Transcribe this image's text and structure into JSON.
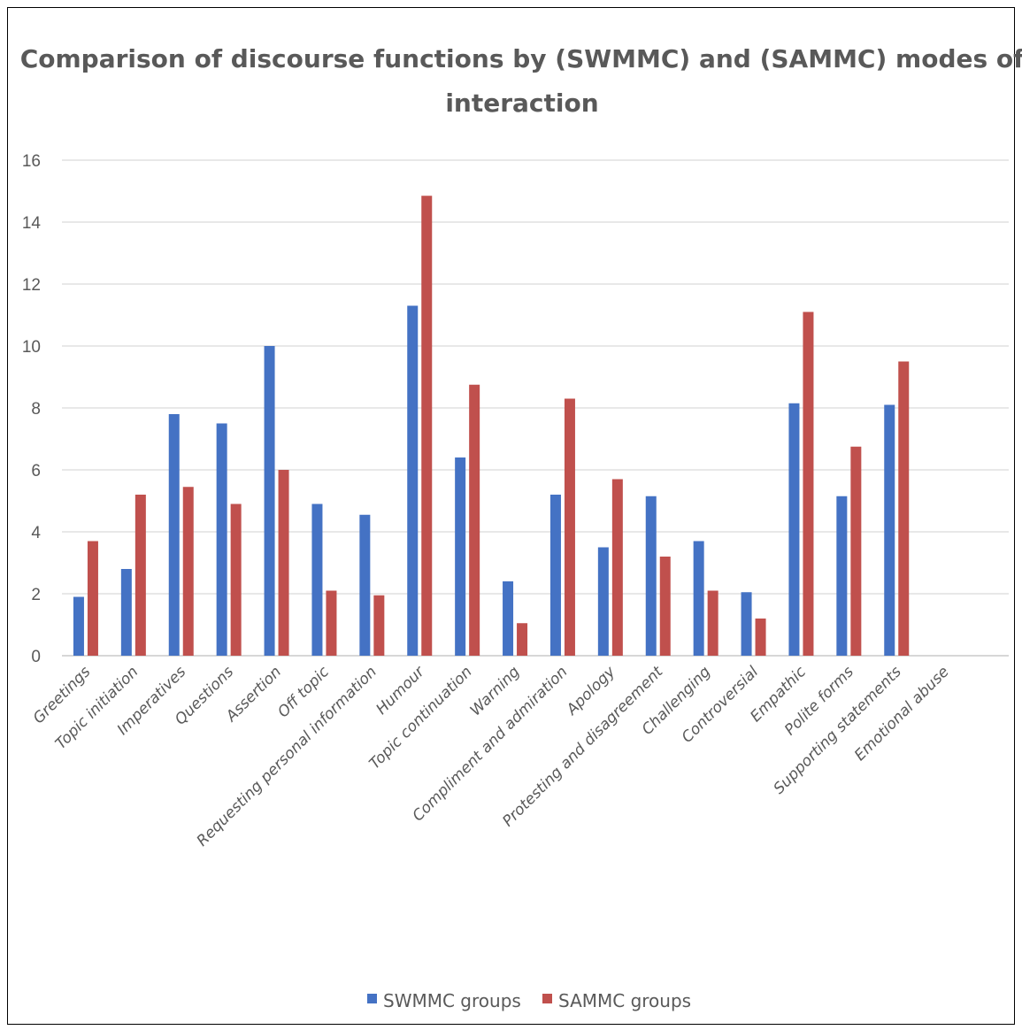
{
  "chart_data": {
    "type": "bar",
    "title_lines": [
      "Comparison of discourse functions by (SWMMC) and (SAMMC) modes of",
      "interaction"
    ],
    "categories": [
      "Greetings",
      "Topic initiation",
      "Imperatives",
      "Questions",
      "Assertion",
      "Off topic",
      "Requesting personal information",
      "Humour",
      "Topic continuation",
      "Warning",
      "Compliment and admiration",
      "Apology",
      "Protesting and disagreement",
      "Challenging",
      "Controversial",
      "Empathic",
      "Polite forms",
      "Supporting statements",
      "Emotional abuse"
    ],
    "series": [
      {
        "name": "SWMMC groups",
        "color": "#4472C4",
        "values": [
          1.9,
          2.8,
          7.8,
          7.5,
          10.0,
          4.9,
          4.55,
          11.3,
          6.4,
          2.4,
          5.2,
          3.5,
          5.15,
          3.7,
          2.05,
          8.15,
          5.15,
          8.1,
          0
        ]
      },
      {
        "name": "SAMMC groups",
        "color": "#C0504D",
        "values": [
          3.7,
          5.2,
          5.45,
          4.9,
          6.0,
          2.1,
          1.95,
          14.85,
          8.75,
          1.05,
          8.3,
          5.7,
          3.2,
          2.1,
          1.2,
          11.1,
          6.75,
          9.5,
          0
        ]
      }
    ],
    "ylim": [
      0,
      16
    ],
    "yticks": [
      "0",
      "2",
      "4",
      "6",
      "8",
      "10",
      "12",
      "14",
      "16"
    ],
    "grid": true,
    "legend_position": "bottom"
  }
}
